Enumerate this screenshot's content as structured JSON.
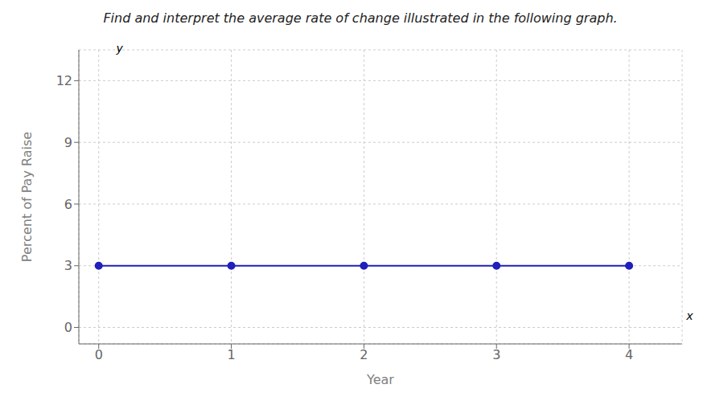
{
  "chart_data": {
    "type": "line",
    "title": "Find and interpret the average rate of change illustrated in the following graph.",
    "xlabel": "Year",
    "ylabel": "Percent of Pay Raise",
    "x": [
      0,
      1,
      2,
      3,
      4
    ],
    "values": [
      3.0,
      3.0,
      3.0,
      3.0,
      3.0
    ],
    "color": "#2020bb",
    "marker": "circle",
    "xlim": [
      -0.15,
      4.4
    ],
    "ylim": [
      -0.8,
      13.5
    ],
    "xticks": [
      0,
      1,
      2,
      3,
      4
    ],
    "yticks": [
      0,
      3,
      6,
      9,
      12
    ],
    "grid": true,
    "annotations": [
      {
        "text": "x",
        "x": 4.42,
        "y": 0.3
      },
      {
        "text": "y",
        "x": 0.12,
        "y": 13.3
      }
    ]
  }
}
